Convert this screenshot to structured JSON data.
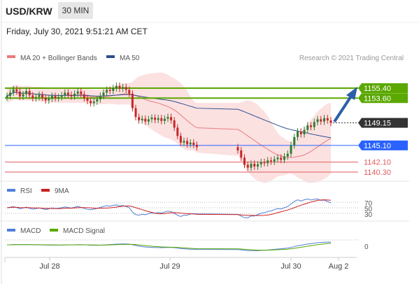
{
  "header": {
    "symbol": "USD/KRW",
    "timeframe": "30 MIN",
    "timestamp": "Friday, July 30, 2021 9:51:21 AM CET"
  },
  "legend": {
    "ma20_bb": "MA 20 + Bollinger Bands",
    "ma50": "MA 50",
    "credit": "Research © 2021 Trading Central",
    "rsi": "RSI",
    "rsi_ma": "9MA",
    "macd": "MACD",
    "macd_signal": "MACD Signal"
  },
  "colors": {
    "ma20": "#e97b7b",
    "ma50": "#2c4f8f",
    "bollinger_fill": "#fbdcdc",
    "resistance": "#5aa800",
    "pivot": "#2962ff",
    "support": "#e05a5a",
    "last_price_bg": "#333333",
    "arrow": "#2c5fa8",
    "candle_up": "#2e7d32",
    "candle_down": "#c62828",
    "rsi": "#4f7ed9",
    "rsi_ma": "#cc1f1f",
    "macd": "#4f7ed9",
    "macd_signal": "#5aa800"
  },
  "chart_data": {
    "type": "candlestick",
    "y_range": [
      1139.0,
      1160.0
    ],
    "x_ticks": [
      "Jul 28",
      "Jul 29",
      "Jul 30",
      "Aug 2"
    ],
    "levels": [
      {
        "name": "resistance-2",
        "value": 1155.4,
        "label": "1155.40",
        "kind": "resistance"
      },
      {
        "name": "resistance-1",
        "value": 1153.6,
        "label": "1153.60",
        "kind": "resistance"
      },
      {
        "name": "last-price",
        "value": 1149.15,
        "label": "1149.15",
        "kind": "last"
      },
      {
        "name": "pivot",
        "value": 1145.1,
        "label": "1145.10",
        "kind": "pivot"
      },
      {
        "name": "support-1",
        "value": 1142.1,
        "label": "1142.10",
        "kind": "support"
      },
      {
        "name": "support-2",
        "value": 1140.3,
        "label": "1140.30",
        "kind": "support"
      }
    ],
    "close": [
      1154.0,
      1154.6,
      1155.2,
      1154.8,
      1153.9,
      1154.3,
      1154.9,
      1154.1,
      1153.6,
      1153.8,
      1154.2,
      1153.7,
      1153.2,
      1153.5,
      1154.0,
      1153.6,
      1153.8,
      1154.1,
      1154.6,
      1154.2,
      1153.9,
      1154.4,
      1154.8,
      1154.3,
      1153.6,
      1153.1,
      1152.7,
      1153.0,
      1153.4,
      1154.0,
      1154.6,
      1155.1,
      1154.9,
      1155.4,
      1155.8,
      1155.3,
      1155.6,
      1155.1,
      1154.4,
      1151.8,
      1150.2,
      1149.6,
      1149.9,
      1149.4,
      1149.8,
      1150.1,
      1149.7,
      1150.0,
      1149.5,
      1149.9,
      1150.2,
      1149.6,
      1148.3,
      1146.8,
      1145.6,
      1145.9,
      1145.3,
      1145.6,
      1145.2,
      1144.8
    ],
    "close2": [
      1144.2,
      1142.9,
      1141.6,
      1141.1,
      1141.8,
      1141.3,
      1141.7,
      1142.1,
      1141.9,
      1142.4,
      1142.2,
      1142.6,
      1142.9,
      1142.5,
      1143.1,
      1143.6,
      1145.1,
      1146.6,
      1147.6,
      1147.1,
      1147.9,
      1148.7,
      1148.4,
      1149.3,
      1149.8,
      1149.4,
      1150.0,
      1149.6,
      1149.15
    ]
  }
}
